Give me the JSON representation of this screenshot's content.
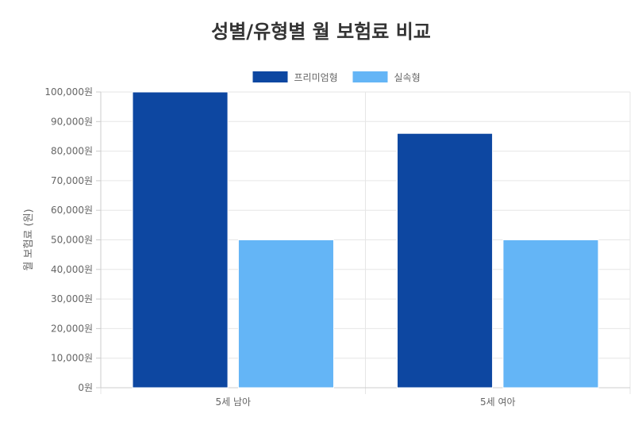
{
  "chart_data": {
    "type": "bar",
    "title": "성별/유형별 월 보험료 비교",
    "ylabel": "월 보험료 (원)",
    "xlabel": "",
    "categories": [
      "5세 남아",
      "5세 여아"
    ],
    "series": [
      {
        "name": "프리미엄형",
        "values": [
          100000,
          86000
        ],
        "color": "#0d47a1"
      },
      {
        "name": "실속형",
        "values": [
          50000,
          50000
        ],
        "color": "#64b5f6"
      }
    ],
    "ylim": [
      0,
      100000
    ],
    "yticks": [
      "0원",
      "10,000원",
      "20,000원",
      "30,000원",
      "40,000원",
      "50,000원",
      "60,000원",
      "70,000원",
      "80,000원",
      "90,000원",
      "100,000원"
    ],
    "legend_position": "top",
    "grid": true
  }
}
